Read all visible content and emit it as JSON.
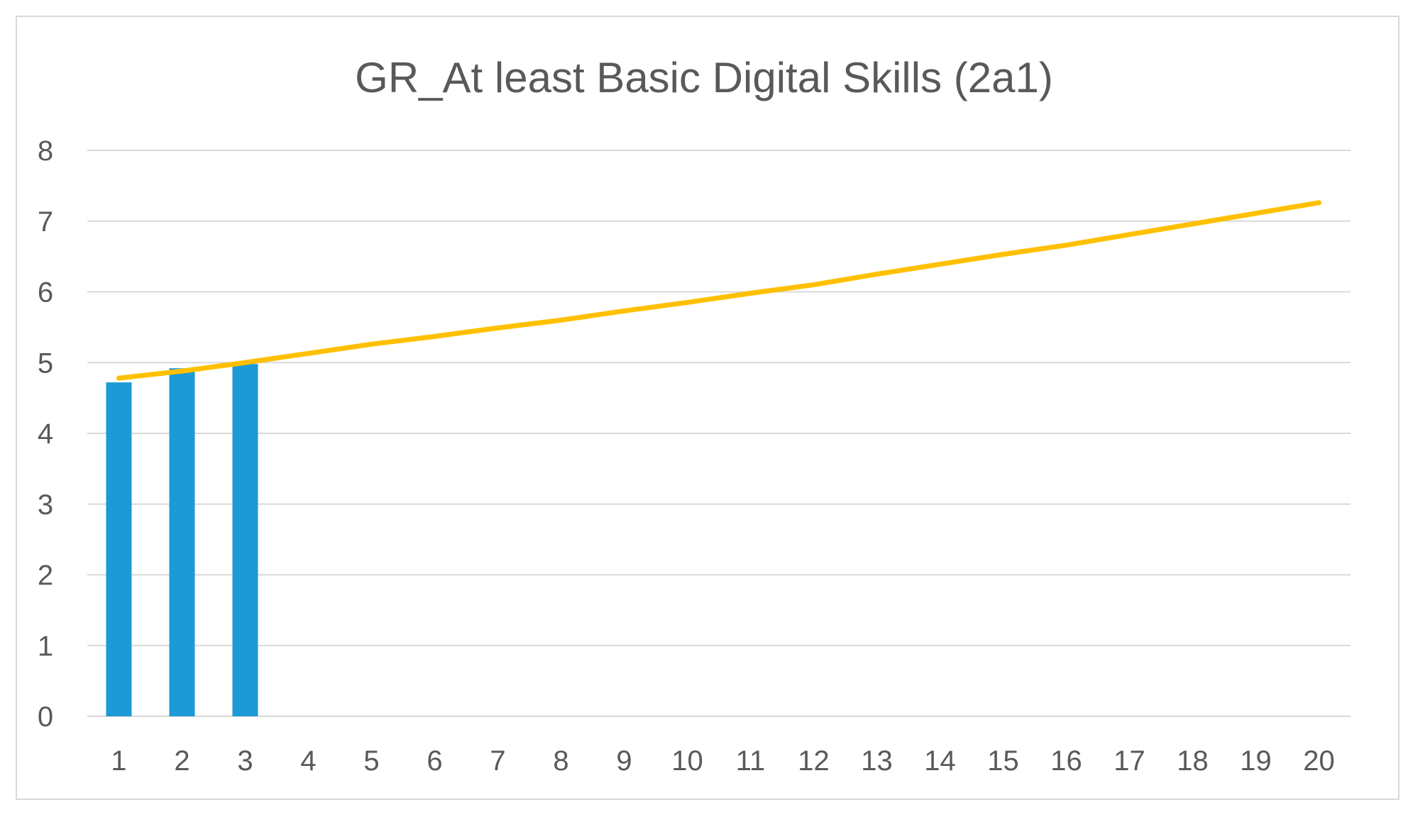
{
  "chart_data": {
    "type": "bar",
    "title": "GR_At least Basic Digital Skills (2a1)",
    "xlabel": "",
    "ylabel": "",
    "categories": [
      "1",
      "2",
      "3",
      "4",
      "5",
      "6",
      "7",
      "8",
      "9",
      "10",
      "11",
      "12",
      "13",
      "14",
      "15",
      "16",
      "17",
      "18",
      "19",
      "20"
    ],
    "ylim": [
      0,
      8
    ],
    "yticks": [
      "0",
      "1",
      "2",
      "3",
      "4",
      "5",
      "6",
      "7",
      "8"
    ],
    "grid": true,
    "legend": "none",
    "series": [
      {
        "kind": "bar",
        "color": "#1b9ad6",
        "values": [
          4.72,
          4.92,
          4.98,
          null,
          null,
          null,
          null,
          null,
          null,
          null,
          null,
          null,
          null,
          null,
          null,
          null,
          null,
          null,
          null,
          null
        ]
      },
      {
        "kind": "line",
        "color": "#ffc000",
        "values": [
          4.78,
          4.88,
          5.0,
          5.13,
          5.26,
          5.37,
          5.49,
          5.6,
          5.73,
          5.85,
          5.98,
          6.1,
          6.25,
          6.39,
          6.53,
          6.66,
          6.81,
          6.96,
          7.11,
          7.26
        ]
      }
    ]
  }
}
